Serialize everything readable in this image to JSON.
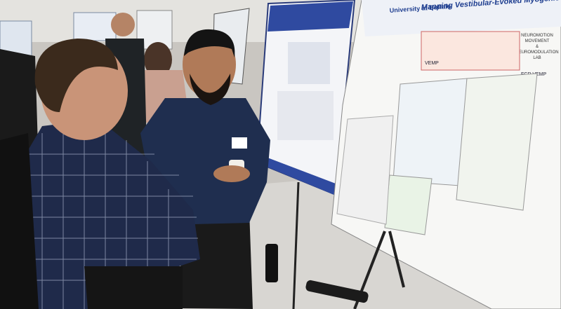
{
  "poster": {
    "title": "Mapping Vestibular-Evoked Myogenic Potentials in Upper Limb Muscles",
    "institution": "University at Buffalo",
    "lab": [
      "NEUROMOTION",
      "MOVEMENT",
      "&",
      "NEUROMODULATION",
      "LAB"
    ],
    "labels": [
      "VEMP",
      "FCR VEMP"
    ]
  }
}
